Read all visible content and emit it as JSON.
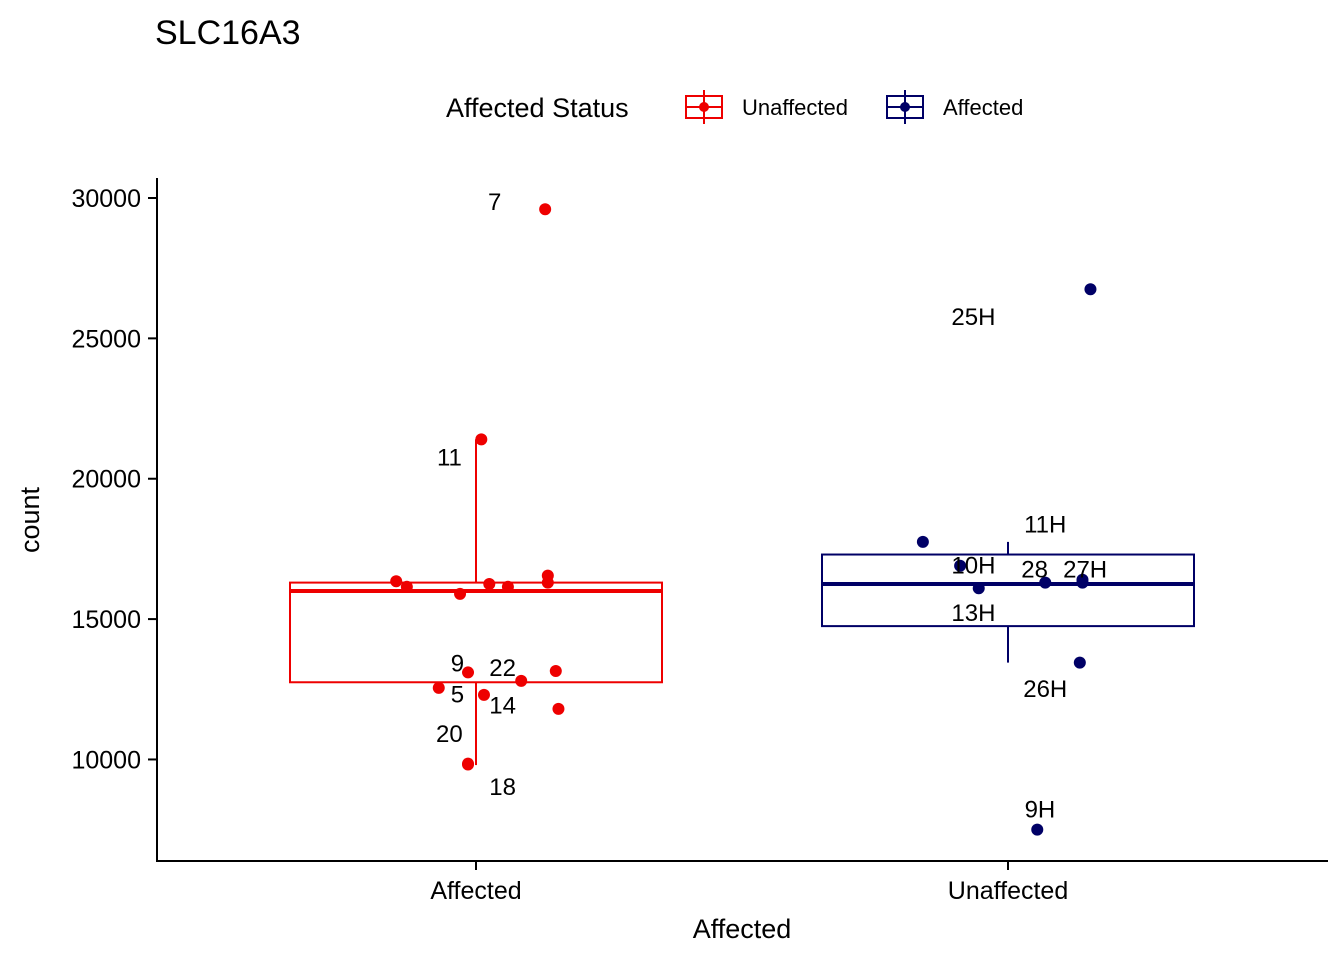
{
  "chart_data": {
    "type": "boxplot",
    "title": "SLC16A3",
    "xlabel": "Affected",
    "ylabel": "count",
    "ylim": [
      6400,
      30700
    ],
    "yticks": [
      10000,
      15000,
      20000,
      25000,
      30000
    ],
    "ytick_labels": [
      "10000",
      "15000",
      "20000",
      "25000",
      "30000"
    ],
    "categories": [
      "Affected",
      "Unaffected"
    ],
    "legend": {
      "title": "Affected Status",
      "placement": "top",
      "entries": [
        {
          "label": "Unaffected",
          "color": "#ee0000"
        },
        {
          "label": "Affected",
          "color": "#000066"
        }
      ]
    },
    "grid": false,
    "boxes": [
      {
        "category": "Affected",
        "color": "#ee0000",
        "whisker_low": 9800,
        "q1": 12750,
        "median": 16000,
        "q3": 16300,
        "whisker_high": 21400
      },
      {
        "category": "Unaffected",
        "color": "#000066",
        "whisker_low": 13450,
        "q1": 14750,
        "median": 16250,
        "q3": 17300,
        "whisker_high": 17750
      }
    ],
    "points": [
      {
        "category": "Affected",
        "jitter": 0.26,
        "y": 29600,
        "label": "7",
        "lx": 0.07,
        "ly": 29900
      },
      {
        "category": "Affected",
        "jitter": 0.02,
        "y": 21400,
        "label": "11",
        "lx": -0.1,
        "ly": 20800
      },
      {
        "category": "Affected",
        "jitter": -0.3,
        "y": 16350,
        "label": "",
        "lx": 0,
        "ly": 0
      },
      {
        "category": "Affected",
        "jitter": -0.26,
        "y": 16150,
        "label": "",
        "lx": 0,
        "ly": 0
      },
      {
        "category": "Affected",
        "jitter": -0.06,
        "y": 15900,
        "label": "",
        "lx": 0,
        "ly": 0
      },
      {
        "category": "Affected",
        "jitter": 0.05,
        "y": 16250,
        "label": "",
        "lx": 0,
        "ly": 0
      },
      {
        "category": "Affected",
        "jitter": 0.12,
        "y": 16150,
        "label": "",
        "lx": 0,
        "ly": 0
      },
      {
        "category": "Affected",
        "jitter": 0.27,
        "y": 16550,
        "label": "",
        "lx": 0,
        "ly": 0
      },
      {
        "category": "Affected",
        "jitter": 0.27,
        "y": 16300,
        "label": "",
        "lx": 0,
        "ly": 0
      },
      {
        "category": "Affected",
        "jitter": -0.03,
        "y": 13100,
        "label": "9",
        "lx": -0.07,
        "ly": 13450
      },
      {
        "category": "Affected",
        "jitter": 0.17,
        "y": 12800,
        "label": "22",
        "lx": 0.1,
        "ly": 13300
      },
      {
        "category": "Affected",
        "jitter": 0.3,
        "y": 13150,
        "label": "",
        "lx": 0,
        "ly": 0
      },
      {
        "category": "Affected",
        "jitter": -0.14,
        "y": 12550,
        "label": "5",
        "lx": -0.07,
        "ly": 12350
      },
      {
        "category": "Affected",
        "jitter": 0.03,
        "y": 12300,
        "label": "14",
        "lx": 0.1,
        "ly": 11950
      },
      {
        "category": "Affected",
        "jitter": 0.31,
        "y": 11800,
        "label": "",
        "lx": 0,
        "ly": 0
      },
      {
        "category": "Affected",
        "jitter": -0.03,
        "y": 9850,
        "label": "20",
        "lx": -0.1,
        "ly": 10950
      },
      {
        "category": "Affected",
        "jitter": -0.03,
        "y": 9820,
        "label": "18",
        "lx": 0.1,
        "ly": 9050
      },
      {
        "category": "Unaffected",
        "jitter": 0.31,
        "y": 26750,
        "label": "25H",
        "lx": -0.13,
        "ly": 25800
      },
      {
        "category": "Unaffected",
        "jitter": -0.32,
        "y": 17750,
        "label": "",
        "lx": 0,
        "ly": 0
      },
      {
        "category": "Unaffected",
        "jitter": -0.18,
        "y": 16900,
        "label": "10H",
        "lx": -0.13,
        "ly": 16950
      },
      {
        "category": "Unaffected",
        "jitter": -0.11,
        "y": 16100,
        "label": "13H",
        "lx": -0.13,
        "ly": 15250
      },
      {
        "category": "Unaffected",
        "jitter": 0.14,
        "y": 16300,
        "label": "28",
        "lx": 0.1,
        "ly": 16800
      },
      {
        "category": "Unaffected",
        "jitter": 0.28,
        "y": 16300,
        "label": "27H",
        "lx": 0.29,
        "ly": 16800
      },
      {
        "category": "Unaffected",
        "jitter": 0.28,
        "y": 16400,
        "label": "11H",
        "lx": 0.14,
        "ly": 18400
      },
      {
        "category": "Unaffected",
        "jitter": 0.27,
        "y": 13450,
        "label": "26H",
        "lx": 0.14,
        "ly": 12550
      },
      {
        "category": "Unaffected",
        "jitter": 0.11,
        "y": 7500,
        "label": "9H",
        "lx": 0.12,
        "ly": 8250
      }
    ]
  }
}
